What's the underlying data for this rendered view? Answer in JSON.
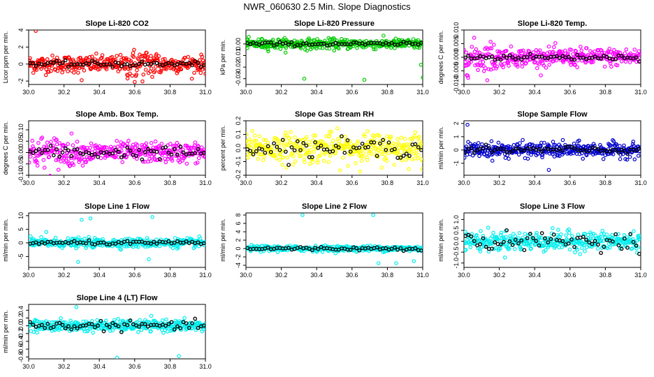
{
  "page": {
    "title": "NWR_060630  2.5 Min. Slope Diagnostics"
  },
  "chart_data": [
    {
      "type": "scatter",
      "title": "Slope Li-820 CO2",
      "ylabel": "Licor ppm per min.",
      "xlim": [
        30.0,
        31.0
      ],
      "ylim": [
        -2.4,
        4.0
      ],
      "yticks": [
        -2,
        0,
        2,
        4
      ],
      "xticks": [
        "30.0",
        "30.2",
        "30.4",
        "30.6",
        "30.8",
        "31.0"
      ],
      "main_color": "#ff0000",
      "spread": 0.9,
      "black_spread": 0.3,
      "outliers": [
        {
          "x": 30.04,
          "y": 3.9
        },
        {
          "x": 30.3,
          "y": -1.9
        },
        {
          "x": 30.6,
          "y": -2.1
        }
      ]
    },
    {
      "type": "scatter",
      "title": "Slope Li-820 Pressure",
      "ylabel": "kPa per min.",
      "xlim": [
        30.0,
        31.0
      ],
      "ylim": [
        -0.035,
        0.012
      ],
      "yticks": [
        -0.03,
        -0.02,
        -0.01,
        0.0
      ],
      "ytick_labels": [
        "-0.03",
        "-0.02",
        "-0.01",
        "0.00"
      ],
      "xticks": [
        "30.0",
        "30.2",
        "30.4",
        "30.6",
        "30.8",
        "31.0"
      ],
      "main_color": "#00cc00",
      "spread": 0.004,
      "black_spread": 0.0015,
      "outliers": [
        {
          "x": 30.33,
          "y": -0.03
        },
        {
          "x": 30.67,
          "y": -0.031
        },
        {
          "x": 31.0,
          "y": -0.029
        },
        {
          "x": 30.99,
          "y": -0.018
        }
      ]
    },
    {
      "type": "scatter",
      "title": "Slope Li-820 Temp.",
      "ylabel": "degrees C per min.",
      "xlim": [
        30.0,
        31.0
      ],
      "ylim": [
        -0.01,
        0.01
      ],
      "yticks": [
        -0.01,
        -0.005,
        0,
        0.005,
        0.01
      ],
      "ytick_labels": [
        "-0.010",
        "-0.005",
        "0.000",
        "0.005",
        "0.010"
      ],
      "xticks": [
        "30.0",
        "30.2",
        "30.4",
        "30.6",
        "30.8",
        "31.0"
      ],
      "main_color": "#ff00ff",
      "spread": 0.003,
      "black_spread": 0.001,
      "outliers": []
    },
    {
      "type": "scatter",
      "title": "Slope Amb. Box Temp.",
      "ylabel": "degrees C per min.",
      "xlim": [
        30.0,
        31.0
      ],
      "ylim": [
        -0.1,
        0.14
      ],
      "yticks": [
        -0.1,
        -0.05,
        0,
        0.05,
        0.1
      ],
      "ytick_labels": [
        "-0.10",
        "-0.05",
        "0.00",
        "0.05",
        "0.10"
      ],
      "xticks": [
        "30.0",
        "30.2",
        "30.4",
        "30.6",
        "30.8",
        "31.0"
      ],
      "main_color": "#ff00ff",
      "spread": 0.04,
      "black_spread": 0.025,
      "outliers": []
    },
    {
      "type": "scatter",
      "title": "Slope Gas Stream RH",
      "ylabel": "percent per min.",
      "xlim": [
        30.0,
        31.0
      ],
      "ylim": [
        -0.2,
        0.2
      ],
      "yticks": [
        -0.2,
        -0.1,
        0,
        0.1,
        0.2
      ],
      "ytick_labels": [
        "-0.2",
        "-0.1",
        "0.0",
        "0.1",
        "0.2"
      ],
      "xticks": [
        "30.0",
        "30.2",
        "30.4",
        "30.6",
        "30.8",
        "31.0"
      ],
      "main_color": "#ffff00",
      "spread": 0.1,
      "black_spread": 0.06,
      "outliers": []
    },
    {
      "type": "scatter",
      "title": "Slope Sample Flow",
      "ylabel": "ml/min per min.",
      "xlim": [
        30.0,
        31.0
      ],
      "ylim": [
        -1.9,
        2.2
      ],
      "yticks": [
        -1,
        0,
        1,
        2
      ],
      "xticks": [
        "30.0",
        "30.2",
        "30.4",
        "30.6",
        "30.8",
        "31.0"
      ],
      "main_color": "#0000cc",
      "spread": 0.5,
      "black_spread": 0.25,
      "outliers": [
        {
          "x": 30.02,
          "y": 1.9
        },
        {
          "x": 30.48,
          "y": -1.5
        }
      ]
    },
    {
      "type": "scatter",
      "title": "Slope Line 1 Flow",
      "ylabel": "ml/min per min.",
      "xlim": [
        30.0,
        31.0
      ],
      "ylim": [
        -9,
        11
      ],
      "yticks": [
        -5,
        0,
        5,
        10
      ],
      "xticks": [
        "30.0",
        "30.2",
        "30.4",
        "30.6",
        "30.8",
        "31.0"
      ],
      "main_color": "#00eeee",
      "spread": 1.5,
      "black_spread": 0.6,
      "outliers": [
        {
          "x": 30.3,
          "y": 8.5
        },
        {
          "x": 30.35,
          "y": 9
        },
        {
          "x": 30.7,
          "y": 9.5
        },
        {
          "x": 30.28,
          "y": -7
        },
        {
          "x": 30.68,
          "y": -6
        },
        {
          "x": 30.1,
          "y": 4
        }
      ]
    },
    {
      "type": "scatter",
      "title": "Slope Line 2 Flow",
      "ylabel": "ml/min per min.",
      "xlim": [
        30.0,
        31.0
      ],
      "ylim": [
        -4.5,
        8.5
      ],
      "yticks": [
        -4,
        -2,
        0,
        2,
        4,
        6,
        8
      ],
      "xticks": [
        "30.0",
        "30.2",
        "30.4",
        "30.6",
        "30.8",
        "31.0"
      ],
      "main_color": "#00eeee",
      "spread": 0.6,
      "black_spread": 0.4,
      "outliers": [
        {
          "x": 30.72,
          "y": 8
        },
        {
          "x": 30.32,
          "y": 8
        },
        {
          "x": 30.75,
          "y": -3.5
        },
        {
          "x": 30.85,
          "y": -3.5
        },
        {
          "x": 30.95,
          "y": -3
        }
      ]
    },
    {
      "type": "scatter",
      "title": "Slope Line 3 Flow",
      "ylabel": "ml/min per min.",
      "xlim": [
        30.0,
        31.0
      ],
      "ylim": [
        -1.2,
        1.3
      ],
      "yticks": [
        -1,
        -0.5,
        0,
        0.5,
        1
      ],
      "ytick_labels": [
        "-1.0",
        "-0.5",
        "0.0",
        "0.5",
        "1.0"
      ],
      "xticks": [
        "30.0",
        "30.2",
        "30.4",
        "30.6",
        "30.8",
        "31.0"
      ],
      "main_color": "#00eeee",
      "spread": 0.4,
      "black_spread": 0.35,
      "outliers": []
    },
    {
      "type": "scatter",
      "title": "Slope Line 4 (LT) Flow",
      "ylabel": "ml/min per min.",
      "xlim": [
        30.0,
        31.0
      ],
      "ylim": [
        -0.85,
        0.55
      ],
      "yticks": [
        -0.8,
        -0.6,
        -0.4,
        -0.2,
        0,
        0.2,
        0.4
      ],
      "ytick_labels": [
        "-0.8",
        "-0.6",
        "-0.4",
        "-0.2",
        "0.0",
        "0.2",
        "0.4"
      ],
      "xticks": [
        "30.0",
        "30.2",
        "30.4",
        "30.6",
        "30.8",
        "31.0"
      ],
      "main_color": "#00eeee",
      "spread": 0.13,
      "black_spread": 0.1,
      "outliers": [
        {
          "x": 30.5,
          "y": -0.82
        },
        {
          "x": 30.85,
          "y": -0.78
        },
        {
          "x": 30.27,
          "y": 0.48
        }
      ]
    }
  ]
}
